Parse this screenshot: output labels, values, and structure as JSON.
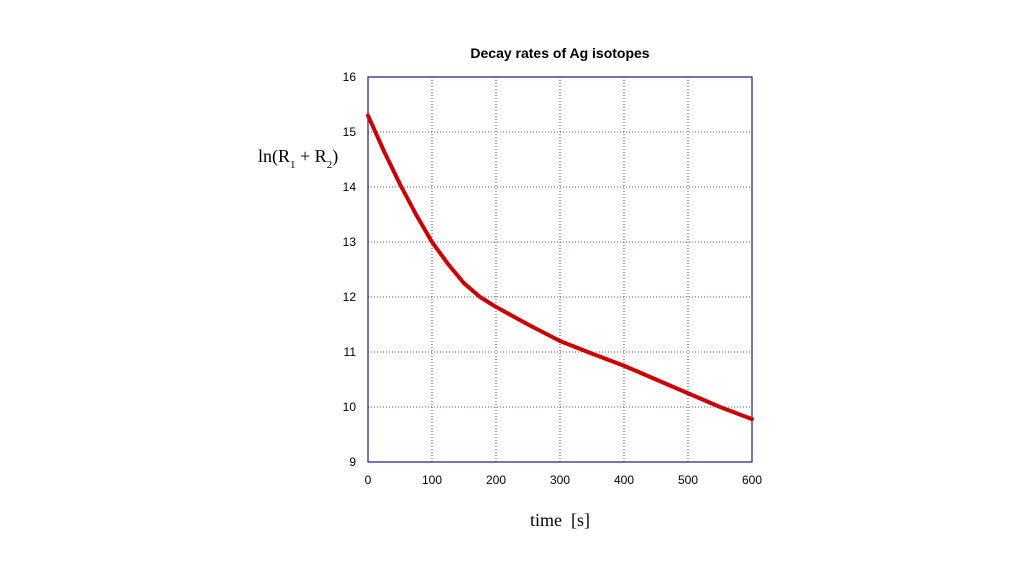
{
  "chart_data": {
    "type": "line",
    "title": "Decay rates of Ag isotopes",
    "x_label": "time  [s]",
    "y_label": "ln(R1 + R2)",
    "x": [
      0,
      25,
      50,
      75,
      100,
      125,
      150,
      175,
      200,
      250,
      300,
      350,
      400,
      450,
      500,
      550,
      600
    ],
    "series": [
      {
        "color": "#cc0000",
        "values": [
          15.3,
          14.65,
          14.05,
          13.5,
          13.0,
          12.6,
          12.25,
          12.0,
          11.82,
          11.5,
          11.2,
          10.97,
          10.75,
          10.5,
          10.25,
          10.0,
          9.78
        ]
      }
    ],
    "xlim": [
      0,
      600
    ],
    "xticks": [
      0,
      100,
      200,
      300,
      400,
      500,
      600
    ],
    "ylim": [
      9,
      16
    ],
    "yticks": [
      9,
      10,
      11,
      12,
      13,
      14,
      15,
      16
    ],
    "grid": true
  }
}
